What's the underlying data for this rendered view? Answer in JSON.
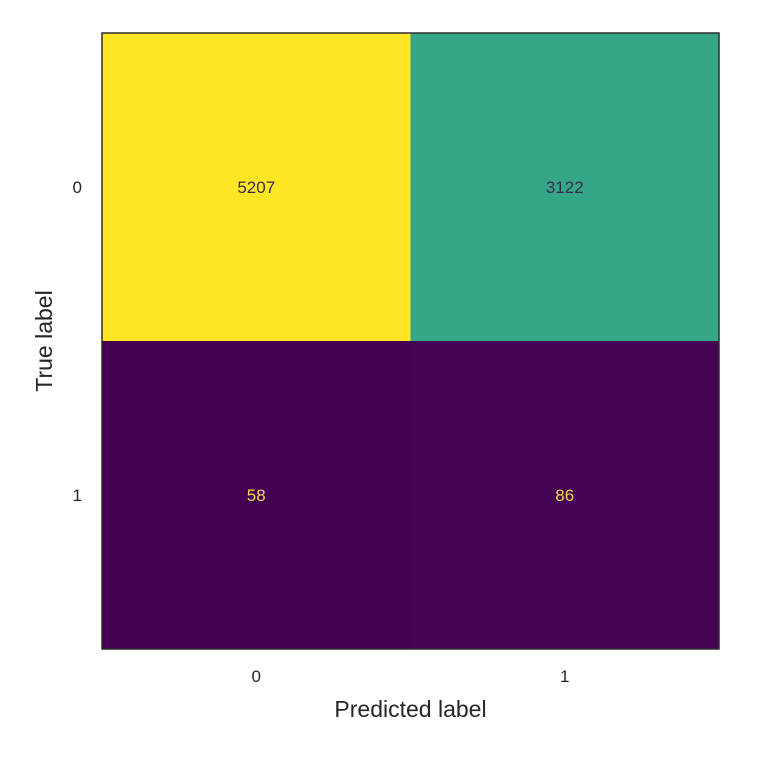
{
  "chart_data": {
    "type": "heatmap",
    "title": "",
    "xlabel": "Predicted label",
    "ylabel": "True label",
    "x_categories": [
      "0",
      "1"
    ],
    "y_categories": [
      "0",
      "1"
    ],
    "values": [
      [
        5207,
        3122
      ],
      [
        58,
        86
      ]
    ],
    "colormap": "viridis",
    "grid": false,
    "legend": "none"
  },
  "colors": {
    "low": "#440154",
    "mid": "#35a886",
    "high": "#fde725",
    "text_on_light": "#3b2b4b",
    "text_on_dark": "#f5d84a",
    "axis_text": "#262626",
    "frame": "#2f2f2f"
  }
}
